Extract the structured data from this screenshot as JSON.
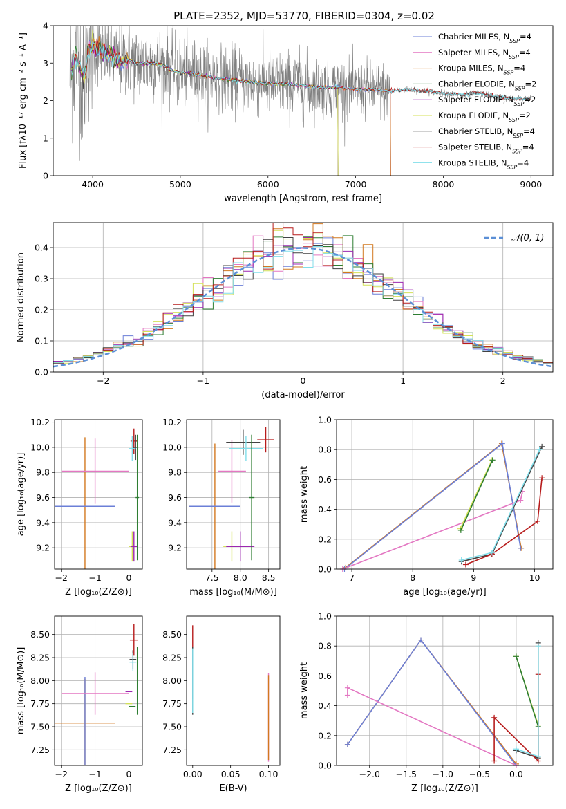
{
  "chart_data": [
    {
      "id": "spectrum",
      "type": "line",
      "title": "PLATE=2352, MJD=53770, FIBERID=0304, z=0.02",
      "xlabel": "wavelength [Angstrom, rest frame]",
      "ylabel": "Flux [fλ10⁻¹⁷ erg cm⁻² s⁻¹ A⁻¹]",
      "xlim": [
        3550,
        9250
      ],
      "ylim": [
        0,
        4
      ],
      "xticks": [
        4000,
        5000,
        6000,
        7000,
        8000,
        9000
      ],
      "yticks": [
        0,
        1,
        2,
        3,
        4
      ],
      "grid": false,
      "legend_position": "top-right",
      "data_series": {
        "name": "",
        "color": "#808080",
        "note": "observed spectrum, noisy blue end"
      },
      "model_continuum": {
        "x": [
          3750,
          3800,
          3850,
          3900,
          3950,
          4000,
          4100,
          4200,
          4300,
          4400,
          4500,
          4600,
          4700,
          4800,
          4900,
          5000,
          5200,
          5400,
          5600,
          5800,
          6000,
          6200,
          6400,
          6600,
          6800,
          7000,
          7200,
          7400,
          7600,
          7800,
          8000,
          8200,
          8400,
          8600,
          8800,
          9000
        ],
        "y": [
          2.7,
          3.2,
          3.0,
          2.5,
          3.4,
          3.5,
          3.3,
          3.2,
          3.05,
          3.1,
          3.0,
          3.0,
          3.0,
          2.95,
          2.8,
          2.75,
          2.7,
          2.6,
          2.55,
          2.5,
          2.45,
          2.45,
          2.4,
          2.35,
          2.35,
          2.3,
          2.3,
          2.25,
          2.3,
          2.25,
          2.2,
          2.15,
          2.2,
          2.1,
          2.05,
          2.05
        ]
      },
      "series": [
        {
          "name": "Chabrier MILES, N_SSP=4",
          "color": "#6b7fd7",
          "xmax": 7400
        },
        {
          "name": "Salpeter MILES, N_SSP=4",
          "color": "#e377c2",
          "xmax": 7400
        },
        {
          "name": "Kroupa MILES, N_SSP=4",
          "color": "#d2781f",
          "xmax": 7400
        },
        {
          "name": "Chabrier ELODIE, N_SSP=2",
          "color": "#2e7d32",
          "xmax": 6800
        },
        {
          "name": "Salpeter ELODIE, N_SSP=2",
          "color": "#9c27b0",
          "xmax": 6800
        },
        {
          "name": "Kroupa ELODIE, N_SSP=2",
          "color": "#d4e157",
          "xmax": 6800
        },
        {
          "name": "Chabrier STELIB, N_SSP=4",
          "color": "#424242",
          "xmax": 9000
        },
        {
          "name": "Salpeter STELIB, N_SSP=4",
          "color": "#b71c1c",
          "xmax": 9000
        },
        {
          "name": "Kroupa STELIB, N_SSP=4",
          "color": "#80deea",
          "xmax": 9000
        }
      ],
      "legend_labels": [
        {
          "prefix": "Chabrier MILES, N",
          "sub": "SSP",
          "suffix": "=4",
          "color": "#6b7fd7"
        },
        {
          "prefix": "Salpeter MILES, N",
          "sub": "SSP",
          "suffix": "=4",
          "color": "#e377c2"
        },
        {
          "prefix": "Kroupa MILES, N",
          "sub": "SSP",
          "suffix": "=4",
          "color": "#d2781f"
        },
        {
          "prefix": "Chabrier ELODIE, N",
          "sub": "SSP",
          "suffix": "=2",
          "color": "#2e7d32"
        },
        {
          "prefix": "Salpeter ELODIE, N",
          "sub": "SSP",
          "suffix": "=2",
          "color": "#9c27b0"
        },
        {
          "prefix": "Kroupa ELODIE, N",
          "sub": "SSP",
          "suffix": "=2",
          "color": "#d4e157"
        },
        {
          "prefix": "Chabrier STELIB, N",
          "sub": "SSP",
          "suffix": "=4",
          "color": "#424242"
        },
        {
          "prefix": "Salpeter STELIB, N",
          "sub": "SSP",
          "suffix": "=4",
          "color": "#b71c1c"
        },
        {
          "prefix": "Kroupa STELIB, N",
          "sub": "SSP",
          "suffix": "=4",
          "color": "#80deea"
        }
      ]
    },
    {
      "id": "residuals",
      "type": "histogram",
      "xlabel": "(data-model)/error",
      "ylabel": "Normed distribution",
      "xlim": [
        -2.5,
        2.5
      ],
      "ylim": [
        0,
        0.48
      ],
      "xticks": [
        -2,
        -1,
        0,
        1,
        2
      ],
      "yticks": [
        0.0,
        0.1,
        0.2,
        0.3,
        0.4
      ],
      "grid": true,
      "legend_position": "top-right",
      "legend_label": "𝒩(0, 1)",
      "reference_curve": {
        "name": "𝒩(0, 1)",
        "mean": 0,
        "sigma": 1,
        "color": "#5b8fd6",
        "style": "dashed"
      },
      "bin_width": 0.1,
      "bin_range": [
        -2.6,
        2.6
      ],
      "colors": [
        "#6b7fd7",
        "#e377c2",
        "#d2781f",
        "#2e7d32",
        "#9c27b0",
        "#d4e157",
        "#424242",
        "#b71c1c",
        "#80deea"
      ]
    },
    {
      "id": "age-vs-Z",
      "type": "errorbar",
      "xlabel": "Z [log₁₀(Z/Z⊙)]",
      "ylabel": "age  [log₁₀(age/yr)]",
      "xlim": [
        -2.2,
        0.4
      ],
      "ylim": [
        9.03,
        10.22
      ],
      "xticks": [
        -2,
        -1,
        0
      ],
      "yticks": [
        9.2,
        9.4,
        9.6,
        9.8,
        10.0,
        10.2
      ],
      "grid": true,
      "points": [
        {
          "x": -1.3,
          "y": 9.53,
          "xerr": 0.9,
          "yerr": 0.55,
          "color": "#d2781f"
        },
        {
          "x": -1.3,
          "y": 9.53,
          "xerr": 0.9,
          "yerr": 0.0,
          "color": "#6b7fd7"
        },
        {
          "x": -1.0,
          "y": 9.81,
          "xerr": 1.0,
          "yerr": 0.26,
          "color": "#e377c2"
        },
        {
          "x": 0.15,
          "y": 10.05,
          "xerr": 0.1,
          "yerr": 0.1,
          "color": "#b71c1c"
        },
        {
          "x": 0.2,
          "y": 10.0,
          "xerr": 0.08,
          "yerr": 0.1,
          "color": "#424242"
        },
        {
          "x": 0.1,
          "y": 9.99,
          "xerr": 0.1,
          "yerr": 0.1,
          "color": "#80deea"
        },
        {
          "x": 0.1,
          "y": 9.21,
          "xerr": 0.1,
          "yerr": 0.12,
          "color": "#d4e157"
        },
        {
          "x": 0.15,
          "y": 9.21,
          "xerr": 0.1,
          "yerr": 0.12,
          "color": "#9c27b0"
        },
        {
          "x": 0.25,
          "y": 9.6,
          "xerr": 0.05,
          "yerr": 0.5,
          "color": "#2e7d32"
        }
      ]
    },
    {
      "id": "age-vs-mass",
      "type": "errorbar",
      "xlabel": "mass [log₁₀(M/M⊙)]",
      "ylabel": "",
      "xlim": [
        7.05,
        8.7
      ],
      "ylim": [
        9.03,
        10.22
      ],
      "xticks": [
        7.5,
        8.0,
        8.5
      ],
      "yticks": [
        9.2,
        9.4,
        9.6,
        9.8,
        10.0,
        10.2
      ],
      "grid": true,
      "points": [
        {
          "x": 7.55,
          "y": 9.53,
          "xerr": 0.45,
          "yerr": 0.5,
          "color": "#d2781f"
        },
        {
          "x": 7.55,
          "y": 9.53,
          "xerr": 0.45,
          "yerr": 0.0,
          "color": "#6b7fd7"
        },
        {
          "x": 7.85,
          "y": 9.81,
          "xerr": 0.25,
          "yerr": 0.25,
          "color": "#e377c2"
        },
        {
          "x": 8.45,
          "y": 10.06,
          "xerr": 0.15,
          "yerr": 0.1,
          "color": "#b71c1c"
        },
        {
          "x": 8.05,
          "y": 10.04,
          "xerr": 0.3,
          "yerr": 0.1,
          "color": "#424242"
        },
        {
          "x": 8.1,
          "y": 9.99,
          "xerr": 0.3,
          "yerr": 0.1,
          "color": "#80deea"
        },
        {
          "x": 7.85,
          "y": 9.21,
          "xerr": 0.15,
          "yerr": 0.12,
          "color": "#d4e157"
        },
        {
          "x": 8.0,
          "y": 9.21,
          "xerr": 0.25,
          "yerr": 0.12,
          "color": "#9c27b0"
        },
        {
          "x": 8.2,
          "y": 9.6,
          "xerr": 0.05,
          "yerr": 0.5,
          "color": "#2e7d32"
        }
      ]
    },
    {
      "id": "mass-weight-vs-age",
      "type": "line",
      "xlabel": "age  [log₁₀(age/yr)]",
      "ylabel": "mass weight",
      "xlim": [
        6.75,
        10.3
      ],
      "ylim": [
        0.0,
        1.0
      ],
      "xticks": [
        7,
        8,
        9,
        10
      ],
      "yticks": [
        0.0,
        0.2,
        0.4,
        0.6,
        0.8,
        1.0
      ],
      "grid": true,
      "series": [
        {
          "name": "Kroupa MILES",
          "color": "#d2781f",
          "x": [
            6.9,
            9.46,
            9.78
          ],
          "y": [
            0.01,
            0.84,
            0.14
          ]
        },
        {
          "name": "Chabrier MILES",
          "color": "#6b7fd7",
          "x": [
            6.88,
            9.47,
            9.77
          ],
          "y": [
            0.0,
            0.84,
            0.14
          ]
        },
        {
          "name": "Salpeter MILES",
          "color": "#e377c2",
          "x": [
            6.85,
            9.77,
            9.8
          ],
          "y": [
            0.0,
            0.46,
            0.52
          ]
        },
        {
          "name": "Kroupa ELODIE",
          "color": "#d4e157",
          "x": [
            8.78,
            9.3
          ],
          "y": [
            0.27,
            0.73
          ]
        },
        {
          "name": "Chabrier ELODIE",
          "color": "#2e7d32",
          "x": [
            8.79,
            9.31
          ],
          "y": [
            0.26,
            0.73
          ]
        },
        {
          "name": "Chabrier STELIB",
          "color": "#424242",
          "x": [
            8.8,
            9.3,
            10.12
          ],
          "y": [
            0.05,
            0.1,
            0.82
          ]
        },
        {
          "name": "Salpeter STELIB",
          "color": "#b71c1c",
          "x": [
            8.87,
            9.3,
            10.05,
            10.12
          ],
          "y": [
            0.03,
            0.1,
            0.32,
            0.61
          ]
        },
        {
          "name": "Kroupa STELIB",
          "color": "#80deea",
          "x": [
            8.8,
            9.3,
            10.08
          ],
          "y": [
            0.06,
            0.11,
            0.8
          ]
        }
      ]
    },
    {
      "id": "mass-vs-Z",
      "type": "errorbar",
      "xlabel": "Z [log₁₀(Z/Z⊙)]",
      "ylabel": "mass [log₁₀(M/M⊙)]",
      "xlim": [
        -2.2,
        0.4
      ],
      "ylim": [
        7.08,
        8.7
      ],
      "xticks": [
        -2,
        -1,
        0
      ],
      "yticks": [
        7.25,
        7.5,
        7.75,
        8.0,
        8.25,
        8.5
      ],
      "grid": true,
      "points": [
        {
          "x": -1.3,
          "y": 7.54,
          "xerr": 0.9,
          "yerr": 0.48,
          "color": "#d2781f"
        },
        {
          "x": -1.3,
          "y": 7.54,
          "xerr": 0.0,
          "yerr": 0.5,
          "color": "#6b7fd7"
        },
        {
          "x": -1.0,
          "y": 7.86,
          "xerr": 1.0,
          "yerr": 0.23,
          "color": "#e377c2"
        },
        {
          "x": 0.15,
          "y": 8.44,
          "xerr": 0.12,
          "yerr": 0.17,
          "color": "#b71c1c"
        },
        {
          "x": 0.12,
          "y": 8.23,
          "xerr": 0.1,
          "yerr": 0.1,
          "color": "#424242"
        },
        {
          "x": 0.12,
          "y": 8.2,
          "xerr": 0.1,
          "yerr": 0.1,
          "color": "#80deea"
        },
        {
          "x": 0.0,
          "y": 7.88,
          "xerr": 0.1,
          "yerr": 0.0,
          "color": "#9c27b0"
        },
        {
          "x": 0.0,
          "y": 7.75,
          "xerr": 0.1,
          "yerr": 0.0,
          "color": "#d4e157"
        },
        {
          "x": 0.1,
          "y": 7.72,
          "xerr": 0.1,
          "yerr": 0.0,
          "color": "#2e7d32"
        },
        {
          "x": 0.25,
          "y": 8.0,
          "xerr": 0.0,
          "yerr": 0.37,
          "color": "#2e7d32"
        }
      ]
    },
    {
      "id": "mass-vs-ebv",
      "type": "errorbar",
      "xlabel": "E(B-V)",
      "ylabel": "",
      "xlim": [
        -0.008,
        0.115
      ],
      "ylim": [
        7.08,
        8.7
      ],
      "xticks": [
        0.0,
        0.05,
        0.1
      ],
      "xtick_labels": [
        "0.00",
        "0.05",
        "0.10"
      ],
      "yticks": [
        7.25,
        7.5,
        7.75,
        8.0,
        8.25,
        8.5
      ],
      "grid": false,
      "points": [
        {
          "x": 0.0,
          "y": 8.2,
          "yerr": 0.4,
          "color": "#b71c1c"
        },
        {
          "x": 0.0,
          "y": 8.0,
          "yerr": 0.37,
          "color": "#424242"
        },
        {
          "x": 0.0,
          "y": 8.0,
          "yerr": 0.35,
          "color": "#80deea"
        },
        {
          "x": 0.1,
          "y": 7.6,
          "yerr": 0.48,
          "color": "#e377c2"
        },
        {
          "x": 0.1,
          "y": 7.6,
          "yerr": 0.46,
          "color": "#d2781f"
        }
      ]
    },
    {
      "id": "mass-weight-vs-Z",
      "type": "line",
      "xlabel": "Z [log₁₀(Z/Z⊙)]",
      "ylabel": "mass weight",
      "xlim": [
        -2.45,
        0.5
      ],
      "ylim": [
        0.0,
        1.0
      ],
      "xticks": [
        -2.0,
        -1.5,
        -1.0,
        -0.5,
        0.0
      ],
      "xtick_labels": [
        "−2.0",
        "−1.5",
        "−1.0",
        "−0.5",
        "0.0"
      ],
      "yticks": [
        0.0,
        0.2,
        0.4,
        0.6,
        0.8,
        1.0
      ],
      "grid": true,
      "series": [
        {
          "name": "Kroupa MILES",
          "color": "#d2781f",
          "x": [
            -2.3,
            -1.3,
            0.0
          ],
          "y": [
            0.14,
            0.84,
            0.01
          ]
        },
        {
          "name": "Chabrier MILES",
          "color": "#6b7fd7",
          "x": [
            -2.3,
            -1.3,
            0.0
          ],
          "y": [
            0.14,
            0.84,
            0.0
          ]
        },
        {
          "name": "Salpeter MILES",
          "color": "#e377c2",
          "x": [
            -2.3,
            -2.3,
            0.0
          ],
          "y": [
            0.47,
            0.52,
            0.0
          ]
        },
        {
          "name": "Kroupa ELODIE",
          "color": "#d4e157",
          "x": [
            0.0,
            0.3
          ],
          "y": [
            0.73,
            0.27
          ]
        },
        {
          "name": "Chabrier ELODIE",
          "color": "#2e7d32",
          "x": [
            0.0,
            0.3
          ],
          "y": [
            0.73,
            0.26
          ]
        },
        {
          "name": "Chabrier STELIB",
          "color": "#424242",
          "x": [
            0.0,
            0.3,
            0.3
          ],
          "y": [
            0.1,
            0.05,
            0.82
          ]
        },
        {
          "name": "Salpeter STELIB",
          "color": "#b71c1c",
          "x": [
            -0.3,
            -0.3,
            0.3,
            0.3
          ],
          "y": [
            0.03,
            0.32,
            0.03,
            0.61
          ]
        },
        {
          "name": "Kroupa STELIB",
          "color": "#80deea",
          "x": [
            0.0,
            0.3,
            0.3
          ],
          "y": [
            0.11,
            0.06,
            0.8
          ]
        }
      ]
    }
  ]
}
